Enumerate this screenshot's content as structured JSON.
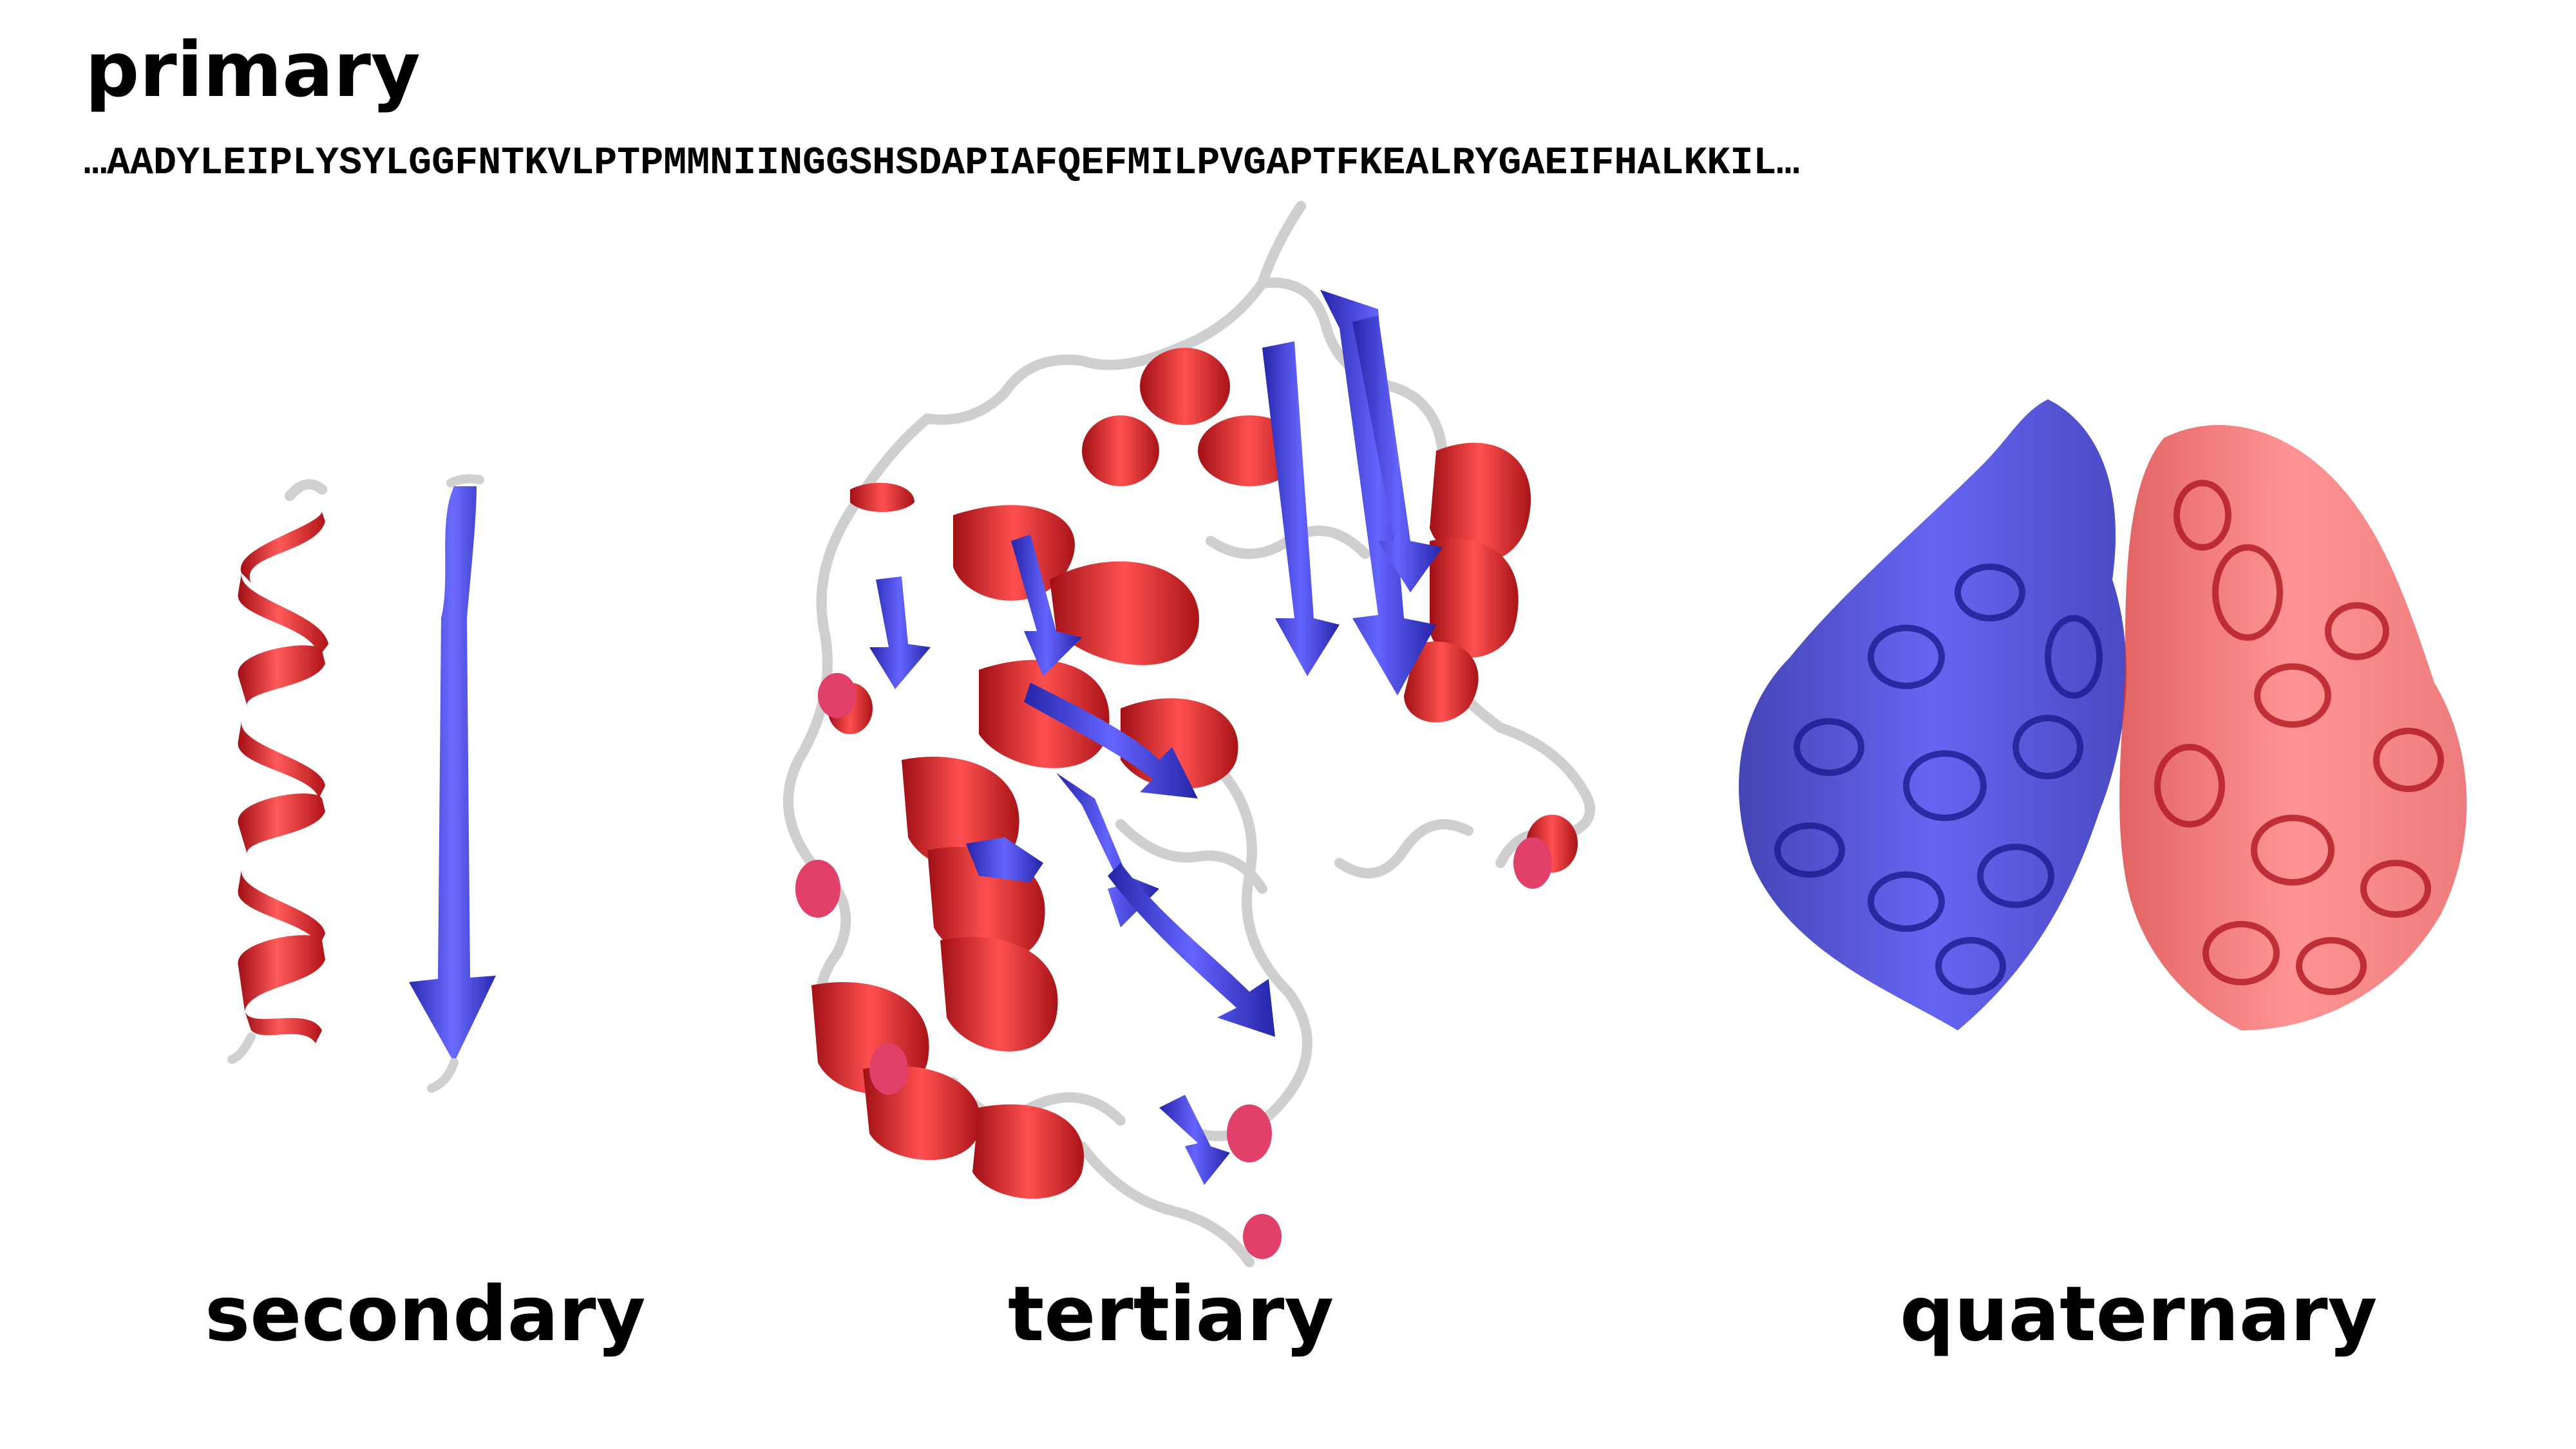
{
  "header": {
    "title": "primary",
    "sequence": "…AADYLEIPLYSYLGGFNTKVLPTPMMNIINGGSHSDAPIAFQEFMILPVGAPTFKEALRYGAEIFHALKKIL…"
  },
  "panels": [
    {
      "label": "secondary"
    },
    {
      "label": "tertiary"
    },
    {
      "label": "quaternary"
    }
  ],
  "colors": {
    "helix": "#e8282c",
    "sheet": "#3c3cdc",
    "coil": "#d8d8d8",
    "background": "#ffffff"
  }
}
